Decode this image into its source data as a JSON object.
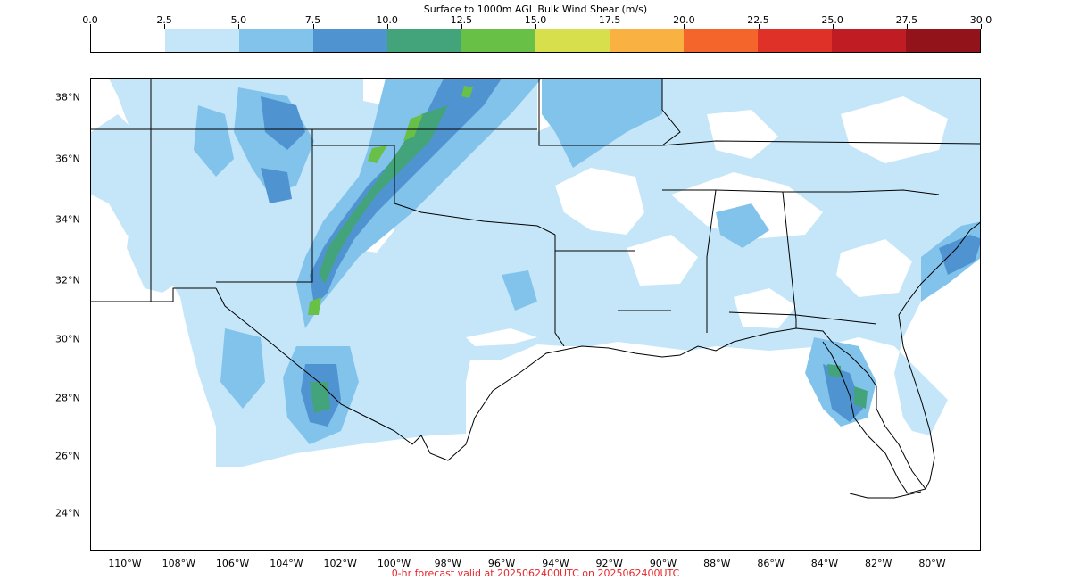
{
  "colorbar": {
    "title": "Surface to 1000m AGL Bulk Wind Shear (m/s)",
    "ticks": [
      "0.0",
      "2.5",
      "5.0",
      "7.5",
      "10.0",
      "12.5",
      "15.0",
      "17.5",
      "20.0",
      "22.5",
      "25.0",
      "27.5",
      "30.0"
    ],
    "colors": [
      "#ffffff",
      "#c4e6f8",
      "#82c3ec",
      "#4f94d1",
      "#43a37b",
      "#69c046",
      "#d7e04c",
      "#f9b142",
      "#f3652b",
      "#df3128",
      "#bf1c24",
      "#92141a"
    ]
  },
  "map": {
    "lat_labels": [
      "38°N",
      "36°N",
      "34°N",
      "32°N",
      "30°N",
      "28°N",
      "26°N",
      "24°N"
    ],
    "lon_labels": [
      "110°W",
      "108°W",
      "106°W",
      "104°W",
      "102°W",
      "100°W",
      "98°W",
      "96°W",
      "94°W",
      "92°W",
      "90°W",
      "88°W",
      "86°W",
      "84°W",
      "82°W",
      "80°W"
    ]
  },
  "footer": {
    "text": "0-hr forecast valid at 2025062400UTC on 2025062400UTC",
    "color": "#e8262b"
  }
}
